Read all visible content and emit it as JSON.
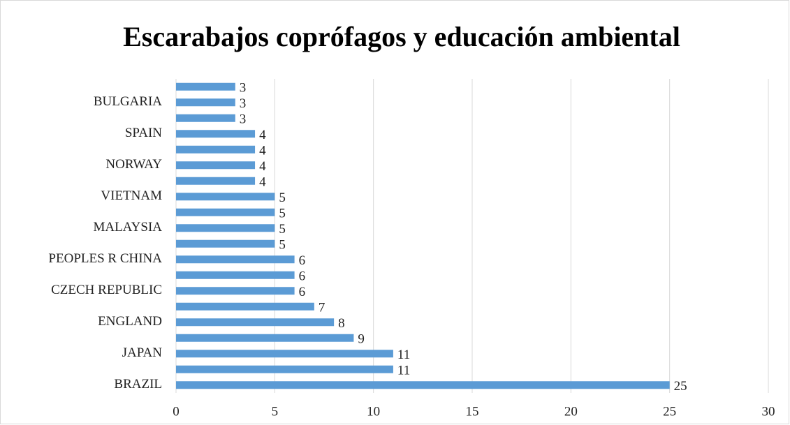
{
  "chart_data": {
    "type": "bar",
    "orientation": "horizontal",
    "title": "Escarabajos coprófagos y educación ambiental",
    "categories": [
      "BRAZIL",
      null,
      "JAPAN",
      null,
      "ENGLAND",
      null,
      "CZECH REPUBLIC",
      null,
      "PEOPLES R CHINA",
      null,
      "MALAYSIA",
      null,
      "VIETNAM",
      null,
      "NORWAY",
      null,
      "SPAIN",
      null,
      "BULGARIA",
      null
    ],
    "values": [
      25,
      11,
      11,
      9,
      8,
      7,
      6,
      6,
      6,
      5,
      5,
      5,
      5,
      4,
      4,
      4,
      4,
      3,
      3,
      3
    ],
    "color": "#5b9bd5",
    "xlim": [
      0,
      30
    ],
    "xticks": [
      0,
      5,
      10,
      15,
      20,
      25,
      30
    ],
    "grid": true
  }
}
